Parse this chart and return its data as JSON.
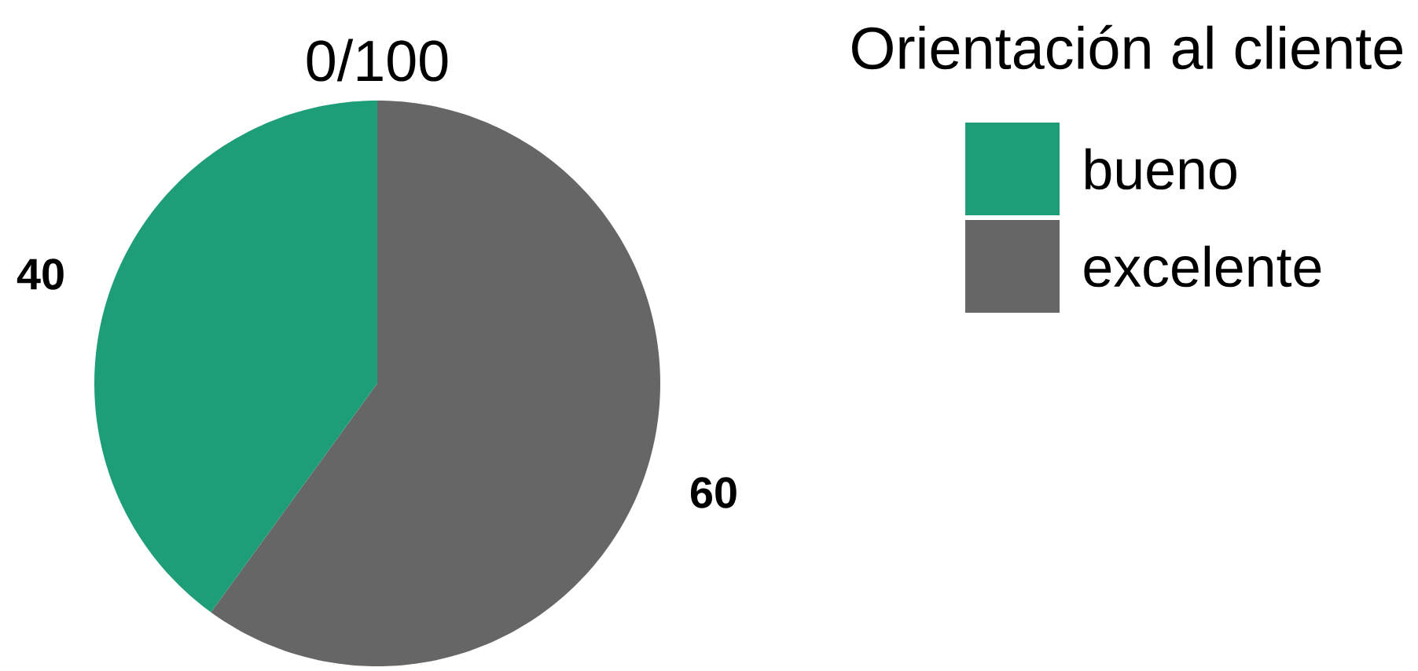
{
  "chart_data": {
    "type": "pie",
    "legend_title": "Orientación al cliente",
    "categories": [
      "bueno",
      "excelente"
    ],
    "values": [
      40,
      60
    ],
    "colors": [
      "#1e9e78",
      "#666666"
    ],
    "data_labels": true,
    "legend": "top right",
    "annotations": [
      "0/100"
    ]
  }
}
